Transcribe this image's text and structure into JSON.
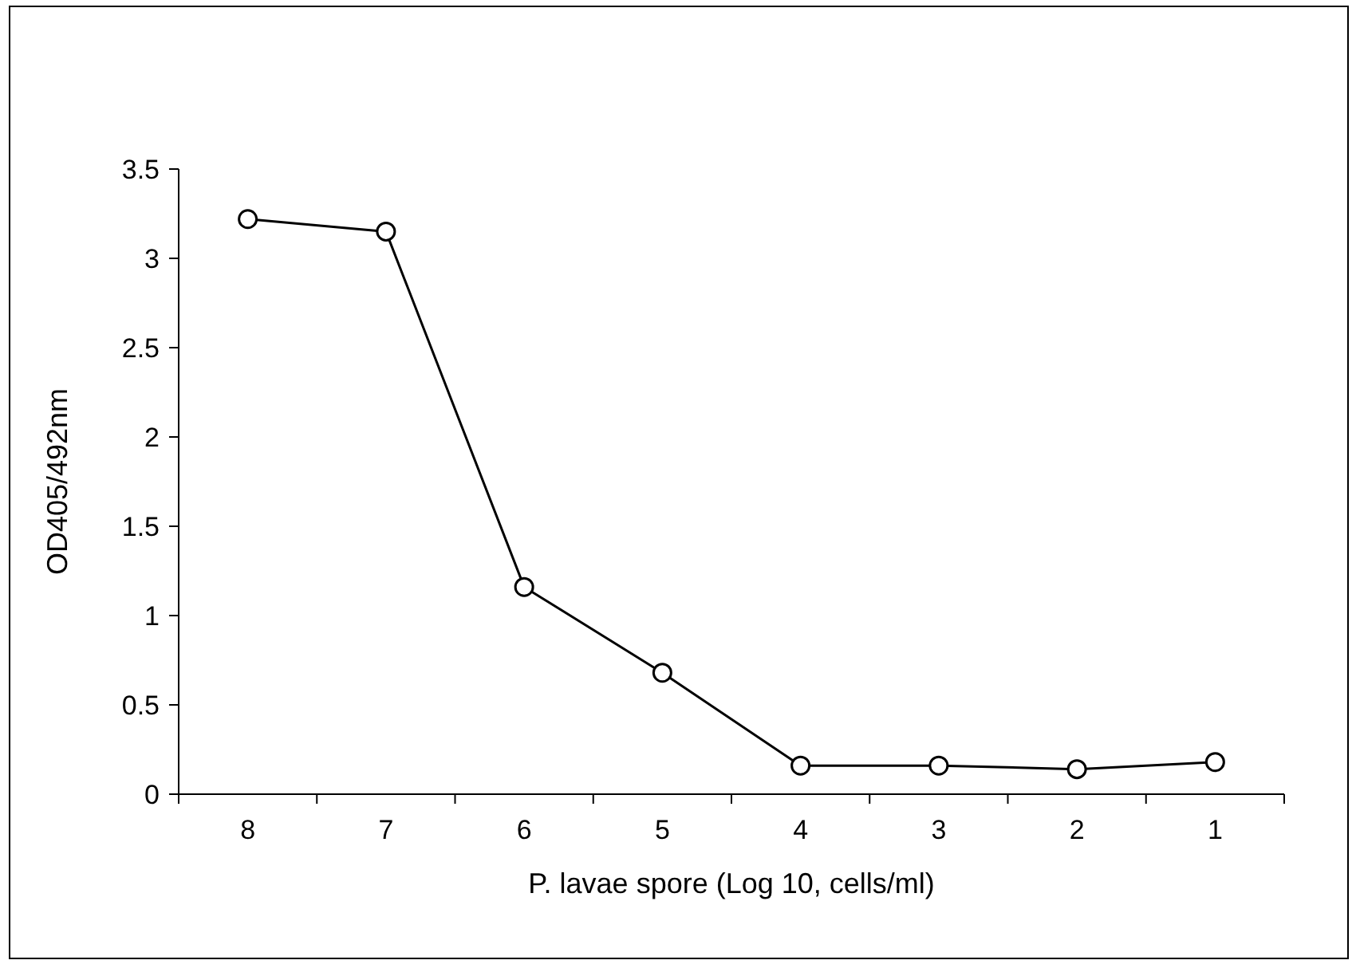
{
  "chart_data": {
    "type": "line",
    "xlabel": "P. lavae spore (Log 10, cells/ml)",
    "ylabel": "OD405/492nm",
    "categories": [
      "8",
      "7",
      "6",
      "5",
      "4",
      "3",
      "2",
      "1"
    ],
    "series": [
      {
        "color": "#000000",
        "values": [
          3.22,
          3.15,
          1.16,
          0.68,
          0.16,
          0.16,
          0.14,
          0.18
        ]
      }
    ],
    "ylim": [
      0,
      3.5
    ],
    "yticks": [
      0,
      0.5,
      1,
      1.5,
      2,
      2.5,
      3,
      3.5
    ],
    "marker": "circle",
    "line_style": "solid"
  }
}
